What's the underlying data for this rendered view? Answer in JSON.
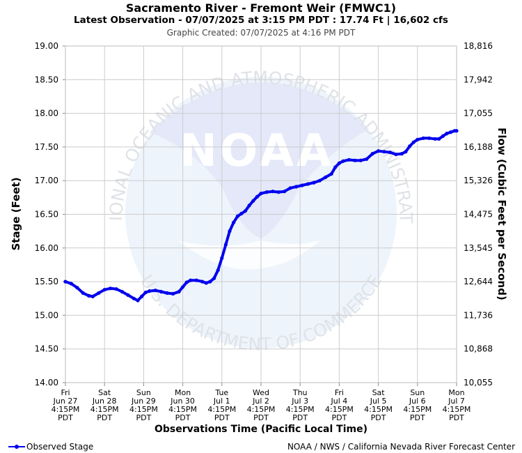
{
  "header": {
    "title": "Sacramento River - Fremont Weir (FMWC1)",
    "subtitle": "Latest Observation - 07/07/2025 at 3:15 PM PDT : 17.74 Ft | 16,602 cfs",
    "created": "Graphic Created: 07/07/2025 at 4:16 PM PDT"
  },
  "watermark": {
    "logo_text": "NOAA",
    "arc_top": "NATIONAL OCEANIC AND ATMOSPHERIC ADMINISTRATION",
    "arc_bottom": "U.S. DEPARTMENT OF COMMERCE"
  },
  "legend": {
    "label": "Observed Stage",
    "color": "#0000ee"
  },
  "footer": {
    "credit": "NOAA / NWS / California Nevada River Forecast Center"
  },
  "chart_data": {
    "type": "line",
    "xlabel": "Observations Time (Pacific Local Time)",
    "ylabel": "Stage (Feet)",
    "y2label": "Flow (Cubic Feet per Second)",
    "ylim": [
      14.0,
      19.0
    ],
    "yticks": [
      "14.00",
      "14.50",
      "15.00",
      "15.50",
      "16.00",
      "16.50",
      "17.00",
      "17.50",
      "18.00",
      "18.50",
      "19.00"
    ],
    "y2ticks": [
      "10,055",
      "10,868",
      "11,736",
      "12,644",
      "13,545",
      "14,475",
      "15,326",
      "16,188",
      "17,055",
      "17,942",
      "18,816"
    ],
    "xlim_days": [
      0,
      10
    ],
    "xticks": [
      [
        "Fri",
        "Jun 27",
        "4:15PM",
        "PDT"
      ],
      [
        "Sat",
        "Jun 28",
        "4:15PM",
        "PDT"
      ],
      [
        "Sun",
        "Jun 29",
        "4:15PM",
        "PDT"
      ],
      [
        "Mon",
        "Jun 30",
        "4:15PM",
        "PDT"
      ],
      [
        "Tue",
        "Jul 1",
        "4:15PM",
        "PDT"
      ],
      [
        "Wed",
        "Jul 2",
        "4:15PM",
        "PDT"
      ],
      [
        "Thu",
        "Jul 3",
        "4:15PM",
        "PDT"
      ],
      [
        "Fri",
        "Jul 4",
        "4:15PM",
        "PDT"
      ],
      [
        "Sat",
        "Jul 5",
        "4:15PM",
        "PDT"
      ],
      [
        "Sun",
        "Jul 6",
        "4:15PM",
        "PDT"
      ],
      [
        "Mon",
        "Jul 7",
        "4:15PM",
        "PDT"
      ]
    ],
    "grid": true,
    "series": [
      {
        "name": "Observed Stage",
        "color": "#0000ee",
        "points": [
          [
            0.0,
            15.5
          ],
          [
            0.15,
            15.47
          ],
          [
            0.3,
            15.41
          ],
          [
            0.45,
            15.33
          ],
          [
            0.6,
            15.29
          ],
          [
            0.7,
            15.28
          ],
          [
            0.85,
            15.33
          ],
          [
            1.0,
            15.38
          ],
          [
            1.15,
            15.4
          ],
          [
            1.3,
            15.39
          ],
          [
            1.45,
            15.35
          ],
          [
            1.6,
            15.3
          ],
          [
            1.75,
            15.25
          ],
          [
            1.85,
            15.22
          ],
          [
            1.95,
            15.28
          ],
          [
            2.05,
            15.34
          ],
          [
            2.15,
            15.36
          ],
          [
            2.3,
            15.37
          ],
          [
            2.45,
            15.35
          ],
          [
            2.6,
            15.33
          ],
          [
            2.75,
            15.32
          ],
          [
            2.9,
            15.35
          ],
          [
            3.0,
            15.42
          ],
          [
            3.1,
            15.49
          ],
          [
            3.2,
            15.52
          ],
          [
            3.35,
            15.52
          ],
          [
            3.5,
            15.5
          ],
          [
            3.6,
            15.48
          ],
          [
            3.7,
            15.5
          ],
          [
            3.8,
            15.55
          ],
          [
            3.9,
            15.67
          ],
          [
            4.0,
            15.85
          ],
          [
            4.1,
            16.05
          ],
          [
            4.2,
            16.25
          ],
          [
            4.3,
            16.38
          ],
          [
            4.4,
            16.47
          ],
          [
            4.5,
            16.51
          ],
          [
            4.6,
            16.55
          ],
          [
            4.7,
            16.63
          ],
          [
            4.8,
            16.7
          ],
          [
            4.9,
            16.76
          ],
          [
            5.0,
            16.81
          ],
          [
            5.15,
            16.83
          ],
          [
            5.3,
            16.84
          ],
          [
            5.45,
            16.83
          ],
          [
            5.6,
            16.84
          ],
          [
            5.75,
            16.89
          ],
          [
            5.9,
            16.91
          ],
          [
            6.05,
            16.93
          ],
          [
            6.2,
            16.95
          ],
          [
            6.35,
            16.97
          ],
          [
            6.5,
            17.0
          ],
          [
            6.65,
            17.05
          ],
          [
            6.8,
            17.1
          ],
          [
            6.9,
            17.2
          ],
          [
            7.0,
            17.26
          ],
          [
            7.1,
            17.29
          ],
          [
            7.25,
            17.31
          ],
          [
            7.4,
            17.3
          ],
          [
            7.55,
            17.3
          ],
          [
            7.7,
            17.32
          ],
          [
            7.85,
            17.4
          ],
          [
            8.0,
            17.44
          ],
          [
            8.15,
            17.43
          ],
          [
            8.3,
            17.42
          ],
          [
            8.45,
            17.39
          ],
          [
            8.6,
            17.4
          ],
          [
            8.7,
            17.43
          ],
          [
            8.8,
            17.51
          ],
          [
            8.9,
            17.57
          ],
          [
            9.0,
            17.61
          ],
          [
            9.15,
            17.63
          ],
          [
            9.3,
            17.63
          ],
          [
            9.45,
            17.62
          ],
          [
            9.55,
            17.62
          ],
          [
            9.65,
            17.66
          ],
          [
            9.75,
            17.7
          ],
          [
            9.85,
            17.72
          ],
          [
            9.95,
            17.74
          ],
          [
            10.0,
            17.74
          ]
        ]
      }
    ]
  }
}
